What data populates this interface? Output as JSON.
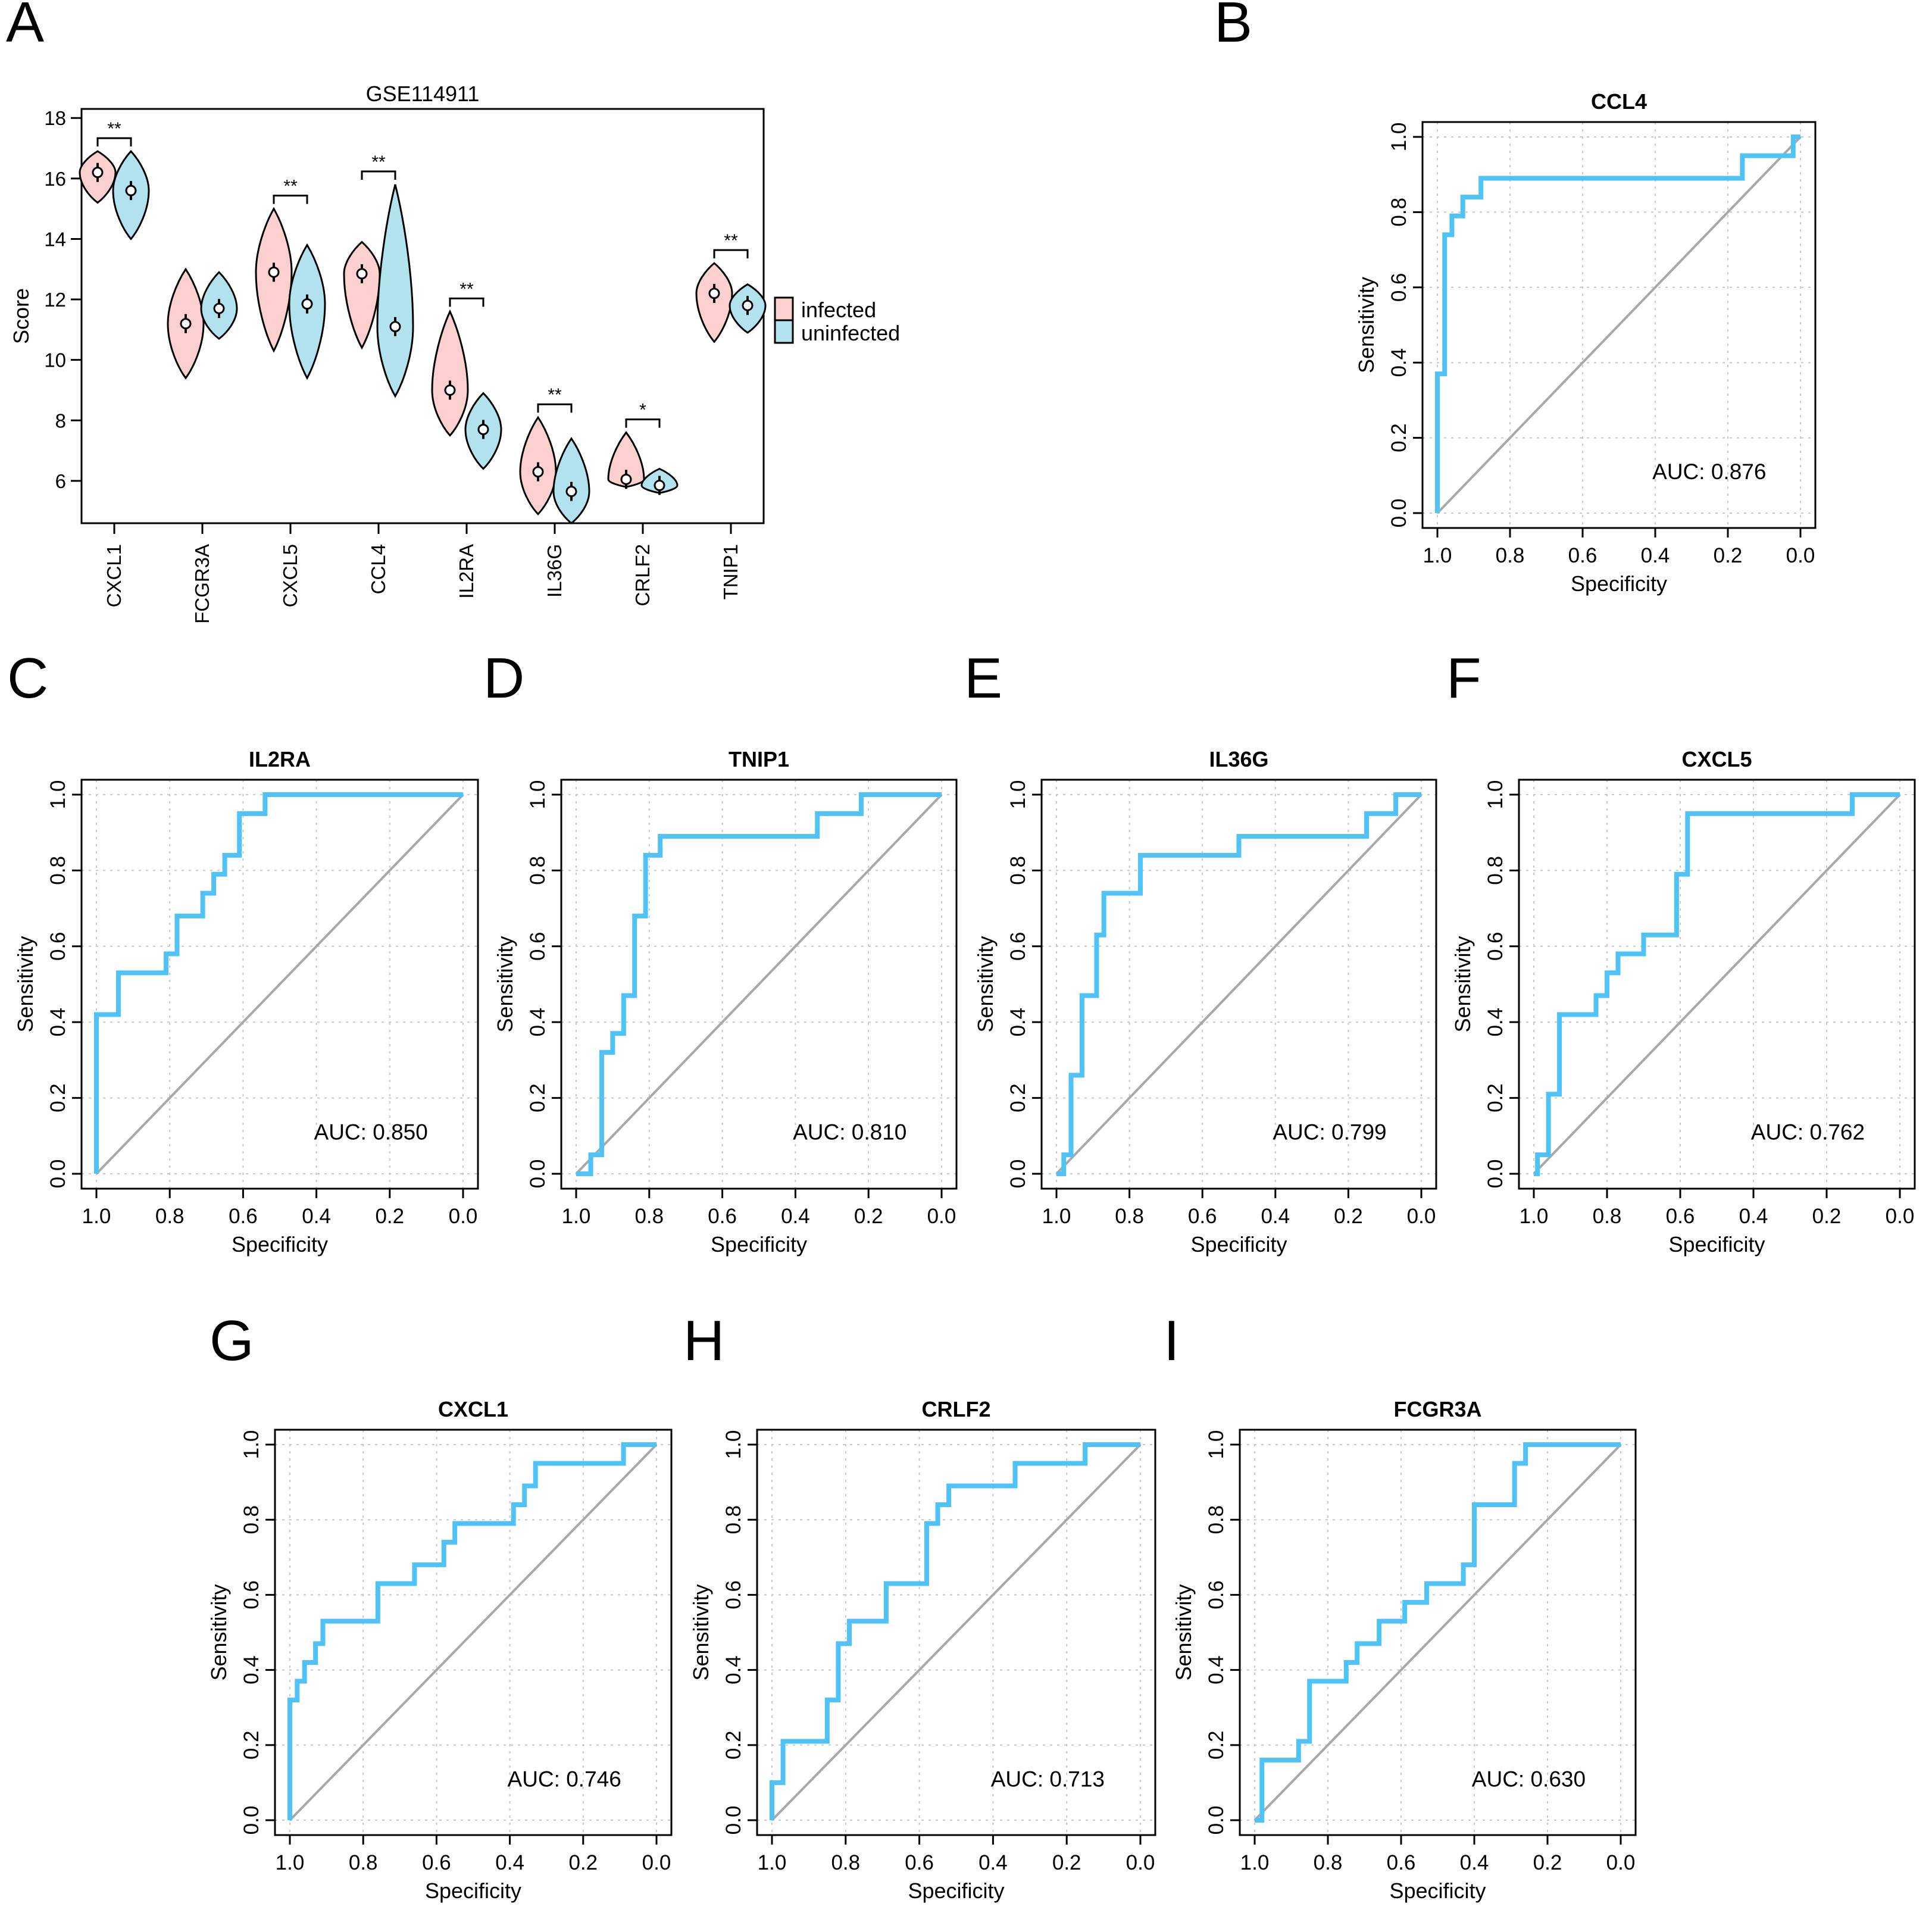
{
  "colors": {
    "infected_fill": "#fdd0d0",
    "uninfected_fill": "#b2e2ee",
    "roc_line": "#4fc3f7",
    "diagonal": "#a8a8a8",
    "grid": "#c8c8c8"
  },
  "panel_labels": [
    "A",
    "B",
    "C",
    "D",
    "E",
    "F",
    "G",
    "H",
    "I"
  ],
  "chart_data": [
    {
      "panel": "A",
      "type": "violin",
      "title": "GSE114911",
      "xlabel": "",
      "ylabel": "Score",
      "ylim": [
        4.6,
        18.3
      ],
      "yticks": [
        6,
        8,
        10,
        12,
        14,
        16,
        18
      ],
      "categories": [
        "CXCL1",
        "FCGR3A",
        "CXCL5",
        "CCL4",
        "IL2RA",
        "IL36G",
        "CRLF2",
        "TNIP1"
      ],
      "legend": {
        "position": "right",
        "entries": [
          "infected",
          "uninfected"
        ]
      },
      "significance": [
        "**",
        "",
        "**",
        "**",
        "**",
        "**",
        "*",
        "**"
      ],
      "series": [
        {
          "name": "infected",
          "medians": [
            16.2,
            11.2,
            12.9,
            12.85,
            9.0,
            6.3,
            6.05,
            12.2
          ],
          "mins": [
            15.2,
            9.4,
            10.3,
            10.4,
            7.5,
            4.9,
            5.8,
            10.6
          ],
          "maxs": [
            16.9,
            13.0,
            15.0,
            13.9,
            11.6,
            8.1,
            7.6,
            13.2
          ]
        },
        {
          "name": "uninfected",
          "medians": [
            15.6,
            11.7,
            11.85,
            11.1,
            7.7,
            5.65,
            5.85,
            11.8
          ],
          "mins": [
            14.0,
            10.7,
            9.4,
            8.8,
            6.4,
            4.6,
            5.6,
            10.9
          ],
          "maxs": [
            16.9,
            12.9,
            13.8,
            15.8,
            8.9,
            7.4,
            6.4,
            12.5
          ]
        }
      ]
    },
    {
      "panel": "B",
      "type": "line",
      "title": "CCL4",
      "xlabel": "Specificity",
      "ylabel": "Sensitivity",
      "auc_text": "AUC: 0.876",
      "xlim": [
        1.0,
        0.0
      ],
      "ylim": [
        0.0,
        1.0
      ],
      "x": [
        1.0,
        1.0,
        0.98,
        0.98,
        0.96,
        0.96,
        0.93,
        0.93,
        0.88,
        0.88,
        0.16,
        0.16,
        0.02,
        0.02,
        0.0
      ],
      "y": [
        0.0,
        0.37,
        0.37,
        0.74,
        0.74,
        0.79,
        0.79,
        0.84,
        0.84,
        0.89,
        0.89,
        0.95,
        0.95,
        1.0,
        1.0
      ]
    },
    {
      "panel": "C",
      "type": "line",
      "title": "IL2RA",
      "xlabel": "Specificity",
      "ylabel": "Sensitivity",
      "auc_text": "AUC: 0.850",
      "xlim": [
        1.0,
        0.0
      ],
      "ylim": [
        0.0,
        1.0
      ],
      "x": [
        1.0,
        1.0,
        0.94,
        0.94,
        0.81,
        0.81,
        0.78,
        0.78,
        0.71,
        0.71,
        0.68,
        0.68,
        0.65,
        0.65,
        0.61,
        0.61,
        0.54,
        0.54,
        0.0
      ],
      "y": [
        0.0,
        0.42,
        0.42,
        0.53,
        0.53,
        0.58,
        0.58,
        0.68,
        0.68,
        0.74,
        0.74,
        0.79,
        0.79,
        0.84,
        0.84,
        0.95,
        0.95,
        1.0,
        1.0
      ]
    },
    {
      "panel": "D",
      "type": "line",
      "title": "TNIP1",
      "xlabel": "Specificity",
      "ylabel": "Sensitivity",
      "auc_text": "AUC: 0.810",
      "xlim": [
        1.0,
        0.0
      ],
      "ylim": [
        0.0,
        1.0
      ],
      "x": [
        1.0,
        0.96,
        0.96,
        0.93,
        0.93,
        0.9,
        0.9,
        0.87,
        0.87,
        0.84,
        0.84,
        0.81,
        0.81,
        0.77,
        0.77,
        0.34,
        0.34,
        0.22,
        0.22,
        0.0
      ],
      "y": [
        0.0,
        0.0,
        0.05,
        0.05,
        0.32,
        0.32,
        0.37,
        0.37,
        0.47,
        0.47,
        0.68,
        0.68,
        0.84,
        0.84,
        0.89,
        0.89,
        0.95,
        0.95,
        1.0,
        1.0
      ]
    },
    {
      "panel": "E",
      "type": "line",
      "title": "IL36G",
      "xlabel": "Specificity",
      "ylabel": "Sensitivity",
      "auc_text": "AUC: 0.799",
      "xlim": [
        1.0,
        0.0
      ],
      "ylim": [
        0.0,
        1.0
      ],
      "x": [
        1.0,
        0.98,
        0.98,
        0.96,
        0.96,
        0.93,
        0.93,
        0.89,
        0.89,
        0.87,
        0.87,
        0.77,
        0.77,
        0.5,
        0.5,
        0.15,
        0.15,
        0.07,
        0.07,
        0.0
      ],
      "y": [
        0.0,
        0.0,
        0.05,
        0.05,
        0.26,
        0.26,
        0.47,
        0.47,
        0.63,
        0.63,
        0.74,
        0.74,
        0.84,
        0.84,
        0.89,
        0.89,
        0.95,
        0.95,
        1.0,
        1.0
      ]
    },
    {
      "panel": "F",
      "type": "line",
      "title": "CXCL5",
      "xlabel": "Specificity",
      "ylabel": "Sensitivity",
      "auc_text": "AUC: 0.762",
      "xlim": [
        1.0,
        0.0
      ],
      "ylim": [
        0.0,
        1.0
      ],
      "x": [
        1.0,
        0.99,
        0.99,
        0.96,
        0.96,
        0.93,
        0.93,
        0.83,
        0.83,
        0.8,
        0.8,
        0.77,
        0.77,
        0.7,
        0.7,
        0.61,
        0.61,
        0.58,
        0.58,
        0.13,
        0.13,
        0.0
      ],
      "y": [
        0.0,
        0.0,
        0.05,
        0.05,
        0.21,
        0.21,
        0.42,
        0.42,
        0.47,
        0.47,
        0.53,
        0.53,
        0.58,
        0.58,
        0.63,
        0.63,
        0.79,
        0.79,
        0.95,
        0.95,
        1.0,
        1.0
      ]
    },
    {
      "panel": "G",
      "type": "line",
      "title": "CXCL1",
      "xlabel": "Specificity",
      "ylabel": "Sensitivity",
      "auc_text": "AUC: 0.746",
      "xlim": [
        1.0,
        0.0
      ],
      "ylim": [
        0.0,
        1.0
      ],
      "x": [
        1.0,
        1.0,
        0.98,
        0.98,
        0.96,
        0.96,
        0.93,
        0.93,
        0.91,
        0.91,
        0.76,
        0.76,
        0.66,
        0.66,
        0.58,
        0.58,
        0.55,
        0.55,
        0.39,
        0.39,
        0.36,
        0.36,
        0.33,
        0.33,
        0.31,
        0.31,
        0.09,
        0.09,
        0.05,
        0.05,
        0.0
      ],
      "y": [
        0.0,
        0.32,
        0.32,
        0.37,
        0.37,
        0.42,
        0.42,
        0.47,
        0.47,
        0.53,
        0.53,
        0.63,
        0.63,
        0.68,
        0.68,
        0.74,
        0.74,
        0.79,
        0.79,
        0.84,
        0.84,
        0.89,
        0.89,
        0.95,
        0.95,
        0.95,
        0.95,
        1.0,
        1.0,
        1.0,
        1.0
      ]
    },
    {
      "panel": "H",
      "type": "line",
      "title": "CRLF2",
      "xlabel": "Specificity",
      "ylabel": "Sensitivity",
      "auc_text": "AUC: 0.713",
      "xlim": [
        1.0,
        0.0
      ],
      "ylim": [
        0.0,
        1.0
      ],
      "x": [
        1.0,
        1.0,
        0.97,
        0.97,
        0.85,
        0.85,
        0.82,
        0.82,
        0.79,
        0.79,
        0.69,
        0.69,
        0.58,
        0.58,
        0.55,
        0.55,
        0.52,
        0.52,
        0.34,
        0.34,
        0.15,
        0.15,
        0.0
      ],
      "y": [
        0.0,
        0.1,
        0.1,
        0.21,
        0.21,
        0.32,
        0.32,
        0.47,
        0.47,
        0.53,
        0.53,
        0.63,
        0.63,
        0.79,
        0.79,
        0.84,
        0.84,
        0.89,
        0.89,
        0.95,
        0.95,
        1.0,
        1.0
      ]
    },
    {
      "panel": "I",
      "type": "line",
      "title": "FCGR3A",
      "xlabel": "Specificity",
      "ylabel": "Sensitivity",
      "auc_text": "AUC: 0.630",
      "xlim": [
        1.0,
        0.0
      ],
      "ylim": [
        0.0,
        1.0
      ],
      "x": [
        1.0,
        0.98,
        0.98,
        0.88,
        0.88,
        0.85,
        0.85,
        0.75,
        0.75,
        0.72,
        0.72,
        0.69,
        0.69,
        0.66,
        0.66,
        0.59,
        0.59,
        0.53,
        0.53,
        0.46,
        0.46,
        0.43,
        0.43,
        0.4,
        0.4,
        0.29,
        0.29,
        0.26,
        0.26,
        0.0
      ],
      "y": [
        0.0,
        0.0,
        0.16,
        0.16,
        0.21,
        0.21,
        0.37,
        0.37,
        0.42,
        0.42,
        0.47,
        0.47,
        0.47,
        0.47,
        0.53,
        0.53,
        0.58,
        0.58,
        0.63,
        0.63,
        0.63,
        0.63,
        0.68,
        0.68,
        0.84,
        0.84,
        0.95,
        0.95,
        1.0,
        1.0
      ]
    }
  ]
}
